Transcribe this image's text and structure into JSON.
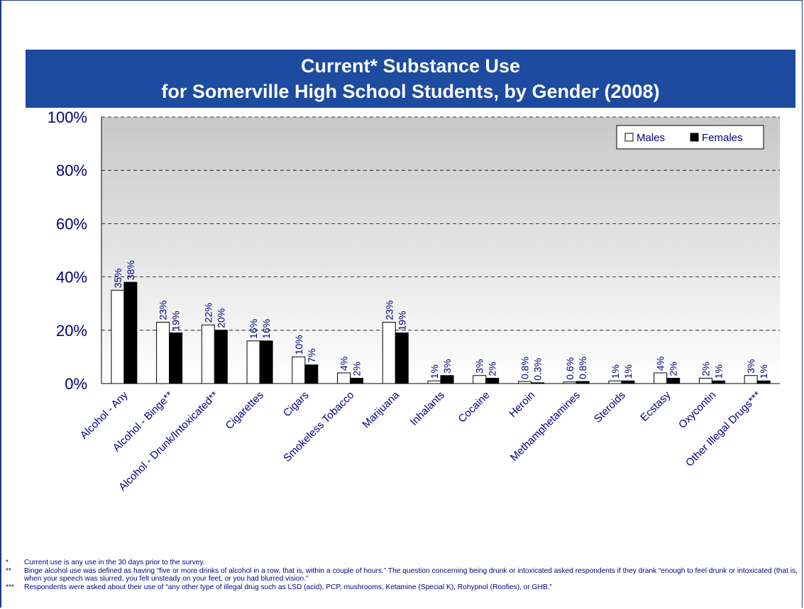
{
  "chart_data": {
    "type": "bar",
    "title": "Current* Substance Use",
    "subtitle": "for Somerville High School Students, by Gender (2008)",
    "categories": [
      "Alcohol - Any",
      "Alcohol - Binge**",
      "Alcohol - Drunk/Intoxicated**",
      "Cigarettes",
      "Cigars",
      "Smokeless Tobacco",
      "Marijuana",
      "Inhalants",
      "Cocaine",
      "Heroin",
      "Methamphetamines",
      "Steroids",
      "Ecstasy",
      "Oxycontin",
      "Other Illegal Drugs***"
    ],
    "series": [
      {
        "name": "Males",
        "values": [
          35,
          23,
          22,
          16,
          10,
          4,
          23,
          1,
          3,
          0.8,
          0.6,
          1,
          4,
          2,
          3
        ],
        "labels": [
          "35%",
          "23%",
          "22%",
          "16%",
          "10%",
          "4%",
          "23%",
          "1%",
          "3%",
          "0.8%",
          "0.6%",
          "1%",
          "4%",
          "2%",
          "3%"
        ]
      },
      {
        "name": "Females",
        "values": [
          38,
          19,
          20,
          16,
          7,
          2,
          19,
          3,
          2,
          0.3,
          0.8,
          1,
          2,
          1,
          1
        ],
        "labels": [
          "38%",
          "19%",
          "20%",
          "16%",
          "7%",
          "2%",
          "19%",
          "3%",
          "2%",
          "0.3%",
          "0.8%",
          "1%",
          "2%",
          "1%",
          "1%"
        ]
      }
    ],
    "yticks": [
      "0%",
      "20%",
      "40%",
      "60%",
      "80%",
      "100%"
    ],
    "ylim": [
      0,
      100
    ],
    "grid": true,
    "legend_position": "top-right",
    "colors": {
      "males": "#ffffff",
      "females": "#000000",
      "title_bar": "#1d4ba0",
      "text": "#000080"
    }
  },
  "footnotes": [
    {
      "mark": "*",
      "text": "Current use is any use in the 30 days prior to the survey."
    },
    {
      "mark": "**",
      "text": "Binge alcohol use was defined as having “five or more drinks of alcohol in a row, that is, within a couple of hours.”  The question concerning being drunk or intoxicated asked respondents if they drank “enough to feel drunk or intoxicated (that is, when your speech was slurred, you felt unsteady on your feet, or you had blurred vision.”"
    },
    {
      "mark": "***",
      "text": "Respondents were asked about their use of “any other type of illegal drug such as LSD (acid), PCP, mushrooms, Ketamine (Special K), Rohypnol (Roofies), or GHB.”"
    }
  ]
}
